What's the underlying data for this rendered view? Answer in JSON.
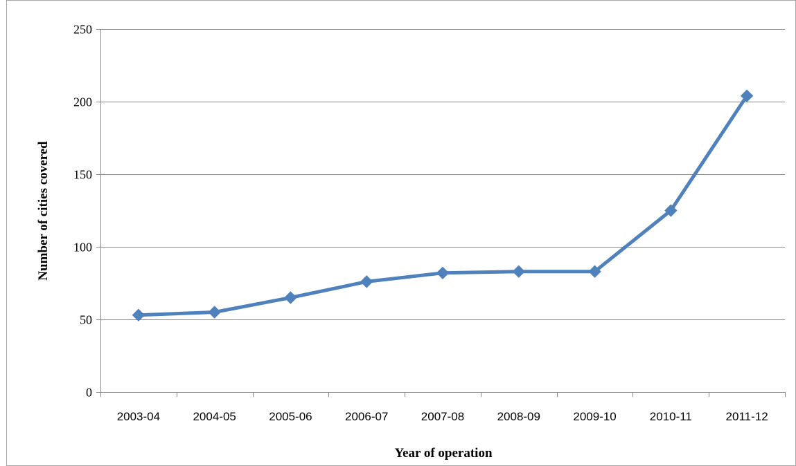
{
  "chart_data": {
    "type": "line",
    "title": "",
    "xlabel": "Year of operation",
    "ylabel": "Number of cities covered",
    "categories": [
      "2003-04",
      "2004-05",
      "2005-06",
      "2006-07",
      "2007-08",
      "2008-09",
      "2009-10",
      "2010-11",
      "2011-12"
    ],
    "series": [
      {
        "values": [
          53,
          55,
          65,
          76,
          82,
          83,
          83,
          125,
          204
        ]
      }
    ],
    "ylim": [
      0,
      250
    ],
    "yticks": [
      0,
      50,
      100,
      150,
      200,
      250
    ],
    "grid": true,
    "legend": "none",
    "colors": {
      "line": "#4f81bd",
      "marker": "#4f81bd",
      "grid": "#868686",
      "axis": "#868686",
      "frame": "#a6a6a6"
    }
  }
}
